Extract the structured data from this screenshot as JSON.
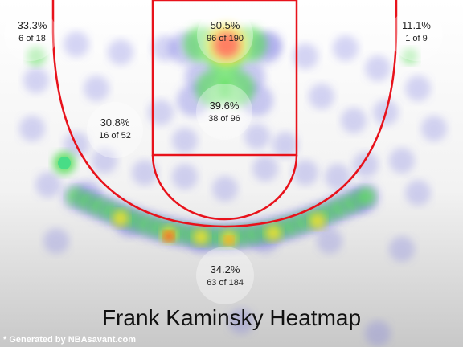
{
  "chart_data": {
    "type": "heatmap",
    "title": "Frank Kaminsky Heatmap",
    "credit": "* Generated by NBAsavant.com",
    "zones": [
      {
        "name": "left-corner-three",
        "pct": "33.3%",
        "made_attempts": "6 of 18"
      },
      {
        "name": "restricted-area",
        "pct": "50.5%",
        "made_attempts": "96 of 190"
      },
      {
        "name": "right-corner-three",
        "pct": "11.1%",
        "made_attempts": "1 of 9"
      },
      {
        "name": "mid-range",
        "pct": "30.8%",
        "made_attempts": "16 of 52"
      },
      {
        "name": "paint-non-ra",
        "pct": "39.6%",
        "made_attempts": "38 of 96"
      },
      {
        "name": "above-break-three",
        "pct": "34.2%",
        "made_attempts": "63 of 184"
      }
    ],
    "colors": {
      "court_lines": "#e8121b",
      "heat_low": "#6a6ae0",
      "heat_mid": "#55dd55",
      "heat_high": "#ff3311"
    }
  }
}
